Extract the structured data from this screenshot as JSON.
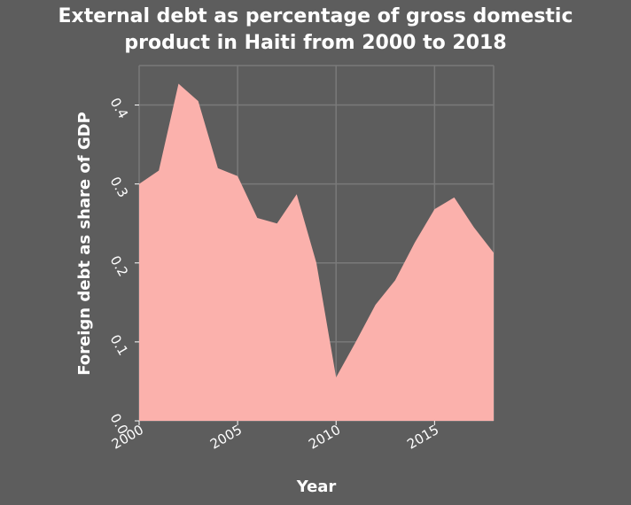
{
  "chart_data": {
    "type": "area",
    "title_line1": "External debt as percentage of gross domestic",
    "title_line2": "product in Haiti from 2000 to 2018",
    "xlabel": "Year",
    "ylabel": "Foreign debt as share of GDP",
    "x": [
      2000,
      2001,
      2002,
      2003,
      2004,
      2005,
      2006,
      2007,
      2008,
      2009,
      2010,
      2011,
      2012,
      2013,
      2014,
      2015,
      2016,
      2017,
      2018
    ],
    "series": [
      {
        "values": [
          0.3,
          0.317,
          0.427,
          0.405,
          0.32,
          0.31,
          0.257,
          0.25,
          0.287,
          0.2,
          0.055,
          0.1,
          0.147,
          0.178,
          0.226,
          0.268,
          0.283,
          0.245,
          0.213
        ],
        "color": "#fbb1ac"
      }
    ],
    "xlim": [
      2000,
      2018
    ],
    "ylim": [
      0,
      0.45
    ],
    "x_ticks": [
      "2000",
      "2005",
      "2010",
      "2015"
    ],
    "x_tick_values": [
      2000,
      2005,
      2010,
      2015
    ],
    "y_ticks": [
      "0.0",
      "0.1",
      "0.2",
      "0.3",
      "0.4"
    ],
    "y_tick_values": [
      0.0,
      0.1,
      0.2,
      0.3,
      0.4
    ],
    "grid": true,
    "grid_color": "#7a7a7a",
    "background": "#5d5d5d",
    "text_color": "#ffffff"
  }
}
